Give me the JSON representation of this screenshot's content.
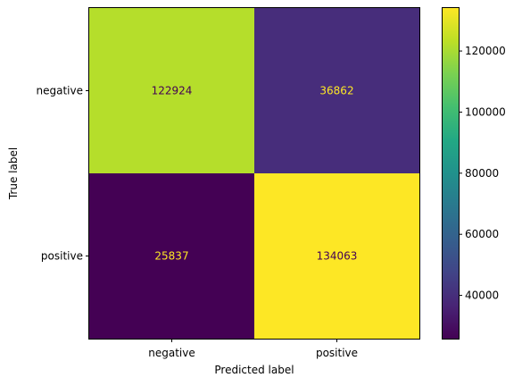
{
  "chart_data": {
    "type": "heatmap",
    "title": "",
    "xlabel": "Predicted label",
    "ylabel": "True label",
    "x_categories": [
      "negative",
      "positive"
    ],
    "y_categories": [
      "negative",
      "positive"
    ],
    "matrix": [
      [
        122924,
        36862
      ],
      [
        25837,
        134063
      ]
    ],
    "colormap": "viridis",
    "colorbar": {
      "range": [
        25837,
        134063
      ],
      "ticks": [
        40000,
        60000,
        80000,
        100000,
        120000
      ],
      "tick_labels": [
        "40000",
        "60000",
        "80000",
        "100000",
        "120000"
      ]
    },
    "grid": false,
    "colors": {
      "cell_neg_neg": "#b5de2b",
      "cell_neg_pos": "#472d7b",
      "cell_pos_neg": "#440154",
      "cell_pos_pos": "#fde725",
      "text_on_dark": "#fde725",
      "text_on_light": "#440154"
    }
  }
}
